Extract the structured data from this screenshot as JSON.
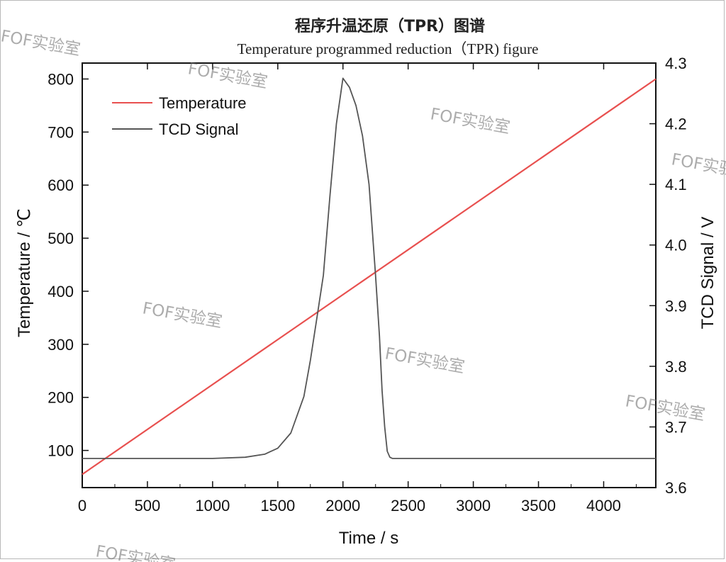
{
  "chart_data": {
    "type": "line",
    "title": "程序升温还原（TPR）图谱",
    "subtitle": "Temperature programmed reduction（TPR) figure",
    "xlabel": "Time / s",
    "ylabel": "Temperature / ℃",
    "y2label": "TCD Signal / V",
    "xlim": [
      0,
      4400
    ],
    "ylim": [
      30,
      830
    ],
    "y2lim": [
      3.6,
      4.3
    ],
    "x_ticks": [
      0,
      500,
      1000,
      1500,
      2000,
      2500,
      3000,
      3500,
      4000
    ],
    "y_ticks": [
      100,
      200,
      300,
      400,
      500,
      600,
      700,
      800
    ],
    "y2_ticks": [
      3.6,
      3.7,
      3.8,
      3.9,
      4.0,
      4.1,
      4.2,
      4.3
    ],
    "legend_position": "top-left",
    "grid": false,
    "series": [
      {
        "name": "Temperature",
        "axis": "left",
        "color": "#e8504f",
        "x": [
          0,
          4400
        ],
        "y": [
          55,
          800
        ]
      },
      {
        "name": "TCD Signal",
        "axis": "right",
        "color": "#555555",
        "x": [
          0,
          1000,
          1250,
          1400,
          1500,
          1600,
          1700,
          1750,
          1800,
          1850,
          1900,
          1950,
          2000,
          2050,
          2100,
          2150,
          2200,
          2250,
          2280,
          2300,
          2320,
          2340,
          2360,
          2380,
          2400,
          2600,
          3000,
          4000,
          4400
        ],
        "y": [
          3.648,
          3.648,
          3.65,
          3.655,
          3.665,
          3.69,
          3.75,
          3.81,
          3.88,
          3.95,
          4.08,
          4.2,
          4.275,
          4.26,
          4.23,
          4.18,
          4.1,
          3.95,
          3.85,
          3.76,
          3.7,
          3.66,
          3.65,
          3.648,
          3.648,
          3.648,
          3.648,
          3.648,
          3.648
        ]
      }
    ]
  },
  "watermarks": [
    "FOF实验室",
    "FOF实验室",
    "FOF实验室",
    "FOF实验室",
    "FOF实验室",
    "FOF实验室",
    "FOF实验室",
    "FOF实验室"
  ]
}
